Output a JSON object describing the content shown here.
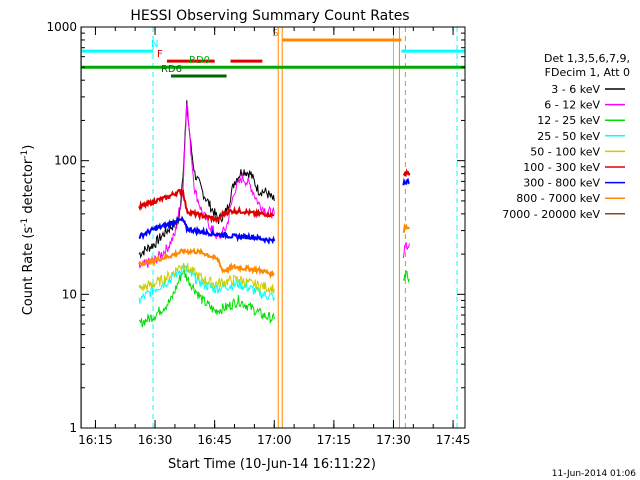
{
  "chart_data": {
    "type": "line",
    "title": "HESSI Observing Summary Count Rates",
    "xlabel": "Start Time (10-Jun-14 16:11:22)",
    "ylabel_main": "Count Rate (s",
    "ylabel_sup1": "-1",
    "ylabel_mid": " detector",
    "ylabel_sup2": "-1",
    "ylabel_end": ")",
    "footer": "11-Jun-2014 01:06",
    "y_scale": "log",
    "xlim": [
      "16:11:22",
      "17:48:00"
    ],
    "ylim": [
      1,
      1000
    ],
    "x_ticks": [
      "16:15",
      "16:30",
      "16:45",
      "17:00",
      "17:15",
      "17:30",
      "17:45"
    ],
    "y_ticks": [
      {
        "value": 1,
        "label": "1"
      },
      {
        "value": 10,
        "label": "10"
      },
      {
        "value": 100,
        "label": "100"
      },
      {
        "value": 1000,
        "label": "1000"
      }
    ],
    "legend": {
      "placement": "right",
      "header": [
        "Det 1,3,5,6,7,9,",
        "FDecim 1, Att 0"
      ],
      "entries": [
        {
          "label": "3 - 6 keV",
          "color": "#000000"
        },
        {
          "label": "6 - 12 keV",
          "color": "#ff00ff"
        },
        {
          "label": "12 - 25 keV",
          "color": "#00dd00"
        },
        {
          "label": "25 - 50 keV",
          "color": "#00ffff"
        },
        {
          "label": "50 - 100 keV",
          "color": "#cccc00"
        },
        {
          "label": "100 - 300 keV",
          "color": "#dd0000"
        },
        {
          "label": "300 - 800 keV",
          "color": "#0000ff"
        },
        {
          "label": "800 - 7000 keV",
          "color": "#ff8800"
        },
        {
          "label": "7000 - 20000 keV",
          "color": "#8b4513"
        }
      ]
    },
    "series": [
      {
        "name": "3 - 6 keV",
        "color": "#000000",
        "width": 1,
        "points": [
          [
            "16:26:00",
            20
          ],
          [
            "16:28:00",
            22
          ],
          [
            "16:30:00",
            24
          ],
          [
            "16:32:00",
            28
          ],
          [
            "16:34:00",
            32
          ],
          [
            "16:36:00",
            35
          ],
          [
            "16:37:00",
            80
          ],
          [
            "16:38:00",
            260
          ],
          [
            "16:39:00",
            130
          ],
          [
            "16:40:00",
            80
          ],
          [
            "16:42:00",
            58
          ],
          [
            "16:44:00",
            45
          ],
          [
            "16:46:00",
            36
          ],
          [
            "16:48:00",
            42
          ],
          [
            "16:50:00",
            70
          ],
          [
            "16:52:00",
            85
          ],
          [
            "16:54:00",
            80
          ],
          [
            "16:56:00",
            60
          ],
          [
            "16:58:00",
            58
          ],
          [
            "17:00:00",
            50
          ]
        ]
      },
      {
        "name": "6 - 12 keV",
        "color": "#ff00ff",
        "width": 1,
        "points": [
          [
            "16:26:00",
            16
          ],
          [
            "16:30:00",
            18
          ],
          [
            "16:33:00",
            22
          ],
          [
            "16:35:00",
            28
          ],
          [
            "16:37:00",
            60
          ],
          [
            "16:38:00",
            290
          ],
          [
            "16:39:00",
            120
          ],
          [
            "16:40:00",
            60
          ],
          [
            "16:42:00",
            40
          ],
          [
            "16:44:00",
            32
          ],
          [
            "16:46:00",
            26
          ],
          [
            "16:48:00",
            32
          ],
          [
            "16:50:00",
            60
          ],
          [
            "16:52:00",
            75
          ],
          [
            "16:54:00",
            65
          ],
          [
            "16:56:00",
            48
          ],
          [
            "16:58:00",
            42
          ],
          [
            "17:00:00",
            40
          ]
        ]
      },
      {
        "name": "12 - 25 keV",
        "color": "#00dd00",
        "width": 1,
        "points": [
          [
            "16:26:00",
            6
          ],
          [
            "16:30:00",
            7
          ],
          [
            "16:34:00",
            9
          ],
          [
            "16:37:00",
            15
          ],
          [
            "16:39:00",
            12
          ],
          [
            "16:42:00",
            9
          ],
          [
            "16:45:00",
            7.5
          ],
          [
            "16:48:00",
            8
          ],
          [
            "16:51:00",
            9
          ],
          [
            "16:54:00",
            8
          ],
          [
            "16:57:00",
            7
          ],
          [
            "17:00:00",
            6.5
          ]
        ]
      },
      {
        "name": "25 - 50 keV",
        "color": "#00ffff",
        "width": 1,
        "points": [
          [
            "16:26:00",
            9
          ],
          [
            "16:30:00",
            11
          ],
          [
            "16:34:00",
            13
          ],
          [
            "16:37:00",
            16
          ],
          [
            "16:39:00",
            14
          ],
          [
            "16:42:00",
            12
          ],
          [
            "16:45:00",
            11
          ],
          [
            "16:48:00",
            11.5
          ],
          [
            "16:51:00",
            12
          ],
          [
            "16:54:00",
            11
          ],
          [
            "16:57:00",
            10
          ],
          [
            "17:00:00",
            9.5
          ]
        ]
      },
      {
        "name": "50 - 100 keV",
        "color": "#cccc00",
        "width": 1,
        "points": [
          [
            "16:26:00",
            11
          ],
          [
            "16:30:00",
            12
          ],
          [
            "16:34:00",
            14
          ],
          [
            "16:37:00",
            17
          ],
          [
            "16:39:00",
            15
          ],
          [
            "16:42:00",
            13
          ],
          [
            "16:45:00",
            12
          ],
          [
            "16:48:00",
            12.5
          ],
          [
            "16:51:00",
            13
          ],
          [
            "16:54:00",
            12
          ],
          [
            "16:57:00",
            11.5
          ],
          [
            "17:00:00",
            11
          ]
        ]
      },
      {
        "name": "100 - 300 keV",
        "color": "#dd0000",
        "width": 2,
        "points": [
          [
            "16:26:00",
            45
          ],
          [
            "16:28:00",
            47
          ],
          [
            "16:30:00",
            50
          ],
          [
            "16:33:00",
            53
          ],
          [
            "16:35:00",
            57
          ],
          [
            "16:37:00",
            60
          ],
          [
            "16:38:00",
            42
          ],
          [
            "16:40:00",
            40
          ],
          [
            "16:43:00",
            38
          ],
          [
            "16:46:00",
            36
          ],
          [
            "16:47:00",
            40
          ],
          [
            "16:49:00",
            42
          ],
          [
            "16:52:00",
            42
          ],
          [
            "16:55:00",
            40
          ],
          [
            "16:58:00",
            40
          ],
          [
            "17:00:00",
            39
          ]
        ]
      },
      {
        "name": "300 - 800 keV",
        "color": "#0000ff",
        "width": 2,
        "points": [
          [
            "16:26:00",
            27
          ],
          [
            "16:28:00",
            29
          ],
          [
            "16:30:00",
            31
          ],
          [
            "16:33:00",
            33
          ],
          [
            "16:35:00",
            35
          ],
          [
            "16:37:00",
            36
          ],
          [
            "16:38:00",
            31
          ],
          [
            "16:40:00",
            30
          ],
          [
            "16:43:00",
            29
          ],
          [
            "16:46:00",
            28
          ],
          [
            "16:47:00",
            28
          ],
          [
            "16:50:00",
            27
          ],
          [
            "16:54:00",
            27
          ],
          [
            "16:57:00",
            26
          ],
          [
            "17:00:00",
            25
          ]
        ]
      },
      {
        "name": "800 - 7000 keV",
        "color": "#ff8800",
        "width": 2,
        "points": [
          [
            "16:26:00",
            17
          ],
          [
            "16:30:00",
            18
          ],
          [
            "16:34:00",
            19.5
          ],
          [
            "16:37:00",
            21
          ],
          [
            "16:40:00",
            21
          ],
          [
            "16:43:00",
            20
          ],
          [
            "16:46:00",
            18
          ],
          [
            "16:47:00",
            15
          ],
          [
            "16:50:00",
            16
          ],
          [
            "16:54:00",
            15.5
          ],
          [
            "16:57:00",
            15
          ],
          [
            "17:00:00",
            14
          ]
        ]
      },
      {
        "name": "6 - 12 keV",
        "color": "#ff00ff",
        "width": 1,
        "points": [
          [
            "17:32:30",
            20
          ],
          [
            "17:33:00",
            25
          ],
          [
            "17:33:30",
            22
          ],
          [
            "17:34:00",
            24
          ]
        ]
      },
      {
        "name": "100 - 300 keV",
        "color": "#dd0000",
        "width": 2,
        "points": [
          [
            "17:32:30",
            80
          ],
          [
            "17:33:00",
            82
          ],
          [
            "17:33:30",
            80
          ],
          [
            "17:34:00",
            81
          ]
        ]
      },
      {
        "name": "300 - 800 keV",
        "color": "#0000ff",
        "width": 2,
        "points": [
          [
            "17:32:30",
            68
          ],
          [
            "17:33:00",
            70
          ],
          [
            "17:34:00",
            69
          ]
        ]
      },
      {
        "name": "800 - 7000 keV",
        "color": "#ff8800",
        "width": 2,
        "points": [
          [
            "17:32:30",
            30
          ],
          [
            "17:33:00",
            32
          ],
          [
            "17:34:00",
            31
          ]
        ]
      },
      {
        "name": "12 - 25 keV",
        "color": "#00dd00",
        "width": 1,
        "points": [
          [
            "17:32:30",
            12
          ],
          [
            "17:33:00",
            14
          ],
          [
            "17:34:00",
            13
          ]
        ]
      }
    ],
    "flag_bars": [
      {
        "label": "N",
        "color": "#00ffff",
        "y": 660,
        "segments": [
          [
            "16:11:22",
            "16:29:00"
          ],
          [
            "16:29:00",
            "16:29:30"
          ],
          [
            "17:32:00",
            "17:48:00"
          ]
        ]
      },
      {
        "label": "S",
        "color": "#ff8800",
        "y": 800,
        "segments": [
          [
            "17:02:00",
            "17:32:00"
          ]
        ]
      },
      {
        "label": "F",
        "color": "#dd0000",
        "y": 555,
        "segments": [
          [
            "16:33:00",
            "16:45:00"
          ],
          [
            "16:49:00",
            "16:57:00"
          ]
        ]
      },
      {
        "label": "RD0",
        "color": "#00aa00",
        "y": 500,
        "segments": [
          [
            "16:11:22",
            "17:48:00"
          ]
        ]
      },
      {
        "label": "RD6",
        "color": "#006600",
        "y": 430,
        "segments": [
          [
            "16:34:00",
            "16:48:00"
          ]
        ]
      }
    ],
    "vertical_markers": [
      {
        "time": "16:11:30",
        "color": "#00ffff",
        "style": "solid"
      },
      {
        "time": "16:29:30",
        "color": "#00ffff",
        "style": "dashed"
      },
      {
        "time": "17:01:00",
        "color": "#ff8800",
        "style": "solid"
      },
      {
        "time": "17:02:00",
        "color": "#ff8800",
        "style": "solid"
      },
      {
        "time": "17:30:00",
        "color": "#00ffff",
        "style": "solid"
      },
      {
        "time": "17:31:30",
        "color": "#ff8800",
        "style": "solid"
      },
      {
        "time": "17:33:00",
        "color": "#ff8800",
        "style": "dashed"
      },
      {
        "time": "17:46:00",
        "color": "#00ffff",
        "style": "dashed"
      }
    ]
  }
}
